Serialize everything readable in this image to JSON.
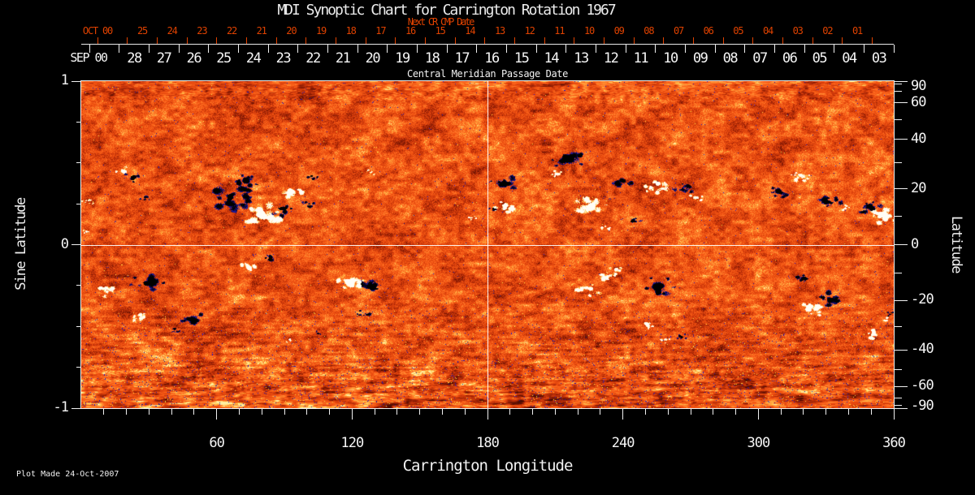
{
  "title": "MDI Synoptic Chart for Carrington Rotation 1967",
  "footer": {
    "plot_made": "Plot Made 24-Oct-2007"
  },
  "colors": {
    "background": "#000000",
    "axis_line": "#e8e8e8",
    "label_white": "#f2f2f2",
    "label_red": "#e04200",
    "grid_line": "#ffffff",
    "quiet_sun_orange": "#e85014",
    "dark_red": "#9c2404",
    "positive_core": "#ffffff",
    "positive_fringe": "#ffc850",
    "negative_core": "#000000",
    "negative_fringe": "#1c17a8",
    "yellow_speck": "#ffd35e"
  },
  "top_axis": {
    "next_label": "Next CR CMP Date",
    "oct_header": "OCT 00",
    "sep_header": "SEP 00",
    "cmp_label": "Central Meridian Passage Date",
    "oct_days": [
      "25",
      "24",
      "23",
      "22",
      "21",
      "20",
      "19",
      "18",
      "17",
      "16",
      "15",
      "14",
      "13",
      "12",
      "11",
      "10",
      "09",
      "08",
      "07",
      "06",
      "05",
      "04",
      "03",
      "02",
      "01"
    ],
    "sep_days": [
      "28",
      "27",
      "26",
      "25",
      "24",
      "23",
      "22",
      "21",
      "20",
      "19",
      "18",
      "17",
      "16",
      "15",
      "14",
      "13",
      "12",
      "11",
      "10",
      "09",
      "08",
      "07",
      "06",
      "05",
      "04",
      "03"
    ]
  },
  "bottom_axis": {
    "label": "Carrington Longitude",
    "tick_labels": [
      "60",
      "120",
      "180",
      "240",
      "300",
      "360"
    ],
    "major_deg": [
      60,
      120,
      180,
      240,
      300,
      360
    ],
    "minor_step_deg": 10
  },
  "left_axis": {
    "label": "Sine Latitude",
    "tick_labels": [
      "1",
      "0",
      "-1"
    ],
    "major_sine": [
      1,
      0,
      -1
    ],
    "minor_sine": [
      0.75,
      0.5,
      0.25,
      -0.25,
      -0.5,
      -0.75
    ]
  },
  "right_axis": {
    "label": "Latitude",
    "tick_labels": [
      "90",
      "60",
      "40",
      "20",
      "0",
      "-20",
      "-40",
      "-60",
      "-90"
    ],
    "major_deg": [
      90,
      60,
      40,
      20,
      0,
      -20,
      -40,
      -60,
      -90
    ],
    "minor_deg": [
      80,
      70,
      50,
      30,
      10,
      -10,
      -30,
      -50,
      -70,
      -80
    ]
  },
  "chart_data": {
    "type": "heatmap",
    "title": "MDI Synoptic Chart for Carrington Rotation 1967",
    "xlabel": "Carrington Longitude",
    "ylabel_left": "Sine Latitude",
    "ylabel_right": "Latitude",
    "carrington_rotation": 1967,
    "x_range_deg": [
      0,
      360
    ],
    "y_range_sine_latitude": [
      -1,
      1
    ],
    "x_major_ticks_deg": [
      60,
      120,
      180,
      240,
      300,
      360
    ],
    "left_ticks_sine": [
      1,
      0,
      -1
    ],
    "right_ticks_deg": [
      90,
      60,
      40,
      20,
      0,
      -20,
      -40,
      -60,
      -90
    ],
    "crosshair": {
      "longitude_deg": 180,
      "latitude_deg": 0
    },
    "field_encoding": "positive flux = white/yellow, negative flux = black/blue, quiet sun = orange-red noise",
    "active_regions": [
      {
        "lon": 18.7,
        "lat": 27.0,
        "pol": "pos",
        "size": 6
      },
      {
        "lon": 22.7,
        "lat": 24.5,
        "pol": "neg",
        "size": 7
      },
      {
        "lon": 28.1,
        "lat": 17.0,
        "pol": "neg",
        "size": 5
      },
      {
        "lon": 2.9,
        "lat": 15.4,
        "pol": "pos",
        "size": 5
      },
      {
        "lon": 2.2,
        "lat": 4.7,
        "pol": "pos",
        "size": 4
      },
      {
        "lon": 66.6,
        "lat": 17.0,
        "pol": "neg",
        "size": 16
      },
      {
        "lon": 72.7,
        "lat": 23.2,
        "pol": "neg",
        "size": 10
      },
      {
        "lon": 79.9,
        "lat": 10.7,
        "pol": "pos",
        "size": 14
      },
      {
        "lon": 88.6,
        "lat": 12.5,
        "pol": "neg",
        "size": 9
      },
      {
        "lon": 92.9,
        "lat": 19.3,
        "pol": "pos",
        "size": 9
      },
      {
        "lon": 99.7,
        "lat": 14.2,
        "pol": "neg",
        "size": 6
      },
      {
        "lon": 103.0,
        "lat": 24.2,
        "pol": "neg",
        "size": 5
      },
      {
        "lon": 127.8,
        "lat": 26.3,
        "pol": "pos",
        "size": 4
      },
      {
        "lon": 172.8,
        "lat": 9.6,
        "pol": "pos",
        "size": 4
      },
      {
        "lon": 187.2,
        "lat": 22.3,
        "pol": "neg",
        "size": 10
      },
      {
        "lon": 187.9,
        "lat": 13.3,
        "pol": "pos",
        "size": 9
      },
      {
        "lon": 182.5,
        "lat": 12.8,
        "pol": "neg",
        "size": 5
      },
      {
        "lon": 216.0,
        "lat": 31.5,
        "pol": "neg",
        "size": 13
      },
      {
        "lon": 209.9,
        "lat": 25.7,
        "pol": "pos",
        "size": 7
      },
      {
        "lon": 225.7,
        "lat": 13.6,
        "pol": "pos",
        "size": 13
      },
      {
        "lon": 239.4,
        "lat": 23.2,
        "pol": "neg",
        "size": 9
      },
      {
        "lon": 254.2,
        "lat": 20.8,
        "pol": "pos",
        "size": 9
      },
      {
        "lon": 244.4,
        "lat": 8.7,
        "pol": "neg",
        "size": 6
      },
      {
        "lon": 233.3,
        "lat": 5.8,
        "pol": "pos",
        "size": 5
      },
      {
        "lon": 266.4,
        "lat": 20.2,
        "pol": "neg",
        "size": 8
      },
      {
        "lon": 272.9,
        "lat": 17.0,
        "pol": "pos",
        "size": 6
      },
      {
        "lon": 318.6,
        "lat": 24.8,
        "pol": "pos",
        "size": 8
      },
      {
        "lon": 308.9,
        "lat": 18.9,
        "pol": "neg",
        "size": 8
      },
      {
        "lon": 331.2,
        "lat": 15.1,
        "pol": "neg",
        "size": 9
      },
      {
        "lon": 348.8,
        "lat": 13.3,
        "pol": "neg",
        "size": 9
      },
      {
        "lon": 355.3,
        "lat": 10.1,
        "pol": "pos",
        "size": 12
      },
      {
        "lon": 338.4,
        "lat": 13.0,
        "pol": "pos",
        "size": 5
      },
      {
        "lon": 10.8,
        "lat": -16.3,
        "pol": "pos",
        "size": 8
      },
      {
        "lon": 29.2,
        "lat": -13.6,
        "pol": "neg",
        "size": 13
      },
      {
        "lon": 25.9,
        "lat": -26.4,
        "pol": "pos",
        "size": 7
      },
      {
        "lon": 50.4,
        "lat": -27.3,
        "pol": "neg",
        "size": 10
      },
      {
        "lon": 41.0,
        "lat": -31.2,
        "pol": "neg",
        "size": 5
      },
      {
        "lon": 74.2,
        "lat": -7.8,
        "pol": "pos",
        "size": 7
      },
      {
        "lon": 83.2,
        "lat": -5.0,
        "pol": "neg",
        "size": 7
      },
      {
        "lon": 92.2,
        "lat": -35.3,
        "pol": "pos",
        "size": 4
      },
      {
        "lon": 118.8,
        "lat": -13.6,
        "pol": "pos",
        "size": 12
      },
      {
        "lon": 128.5,
        "lat": -14.5,
        "pol": "neg",
        "size": 11
      },
      {
        "lon": 125.6,
        "lat": -24.8,
        "pol": "neg",
        "size": 6
      },
      {
        "lon": 104.4,
        "lat": -32.6,
        "pol": "neg",
        "size": 3
      },
      {
        "lon": 224.3,
        "lat": -16.0,
        "pol": "pos",
        "size": 9
      },
      {
        "lon": 231.8,
        "lat": -11.3,
        "pol": "pos",
        "size": 8
      },
      {
        "lon": 236.9,
        "lat": -9.0,
        "pol": "pos",
        "size": 6
      },
      {
        "lon": 256.3,
        "lat": -14.5,
        "pol": "neg",
        "size": 13
      },
      {
        "lon": 251.3,
        "lat": -29.3,
        "pol": "pos",
        "size": 6
      },
      {
        "lon": 258.5,
        "lat": -35.4,
        "pol": "pos",
        "size": 5
      },
      {
        "lon": 266.0,
        "lat": -34.3,
        "pol": "neg",
        "size": 5
      },
      {
        "lon": 320.4,
        "lat": -12.2,
        "pol": "neg",
        "size": 7
      },
      {
        "lon": 331.6,
        "lat": -19.6,
        "pol": "neg",
        "size": 10
      },
      {
        "lon": 324.4,
        "lat": -22.9,
        "pol": "pos",
        "size": 11
      },
      {
        "lon": 349.2,
        "lat": -33.0,
        "pol": "pos",
        "size": 7
      },
      {
        "lon": 356.8,
        "lat": -27.4,
        "pol": "pos",
        "size": 4
      },
      {
        "lon": 358.6,
        "lat": -25.1,
        "pol": "neg",
        "size": 4
      }
    ]
  }
}
